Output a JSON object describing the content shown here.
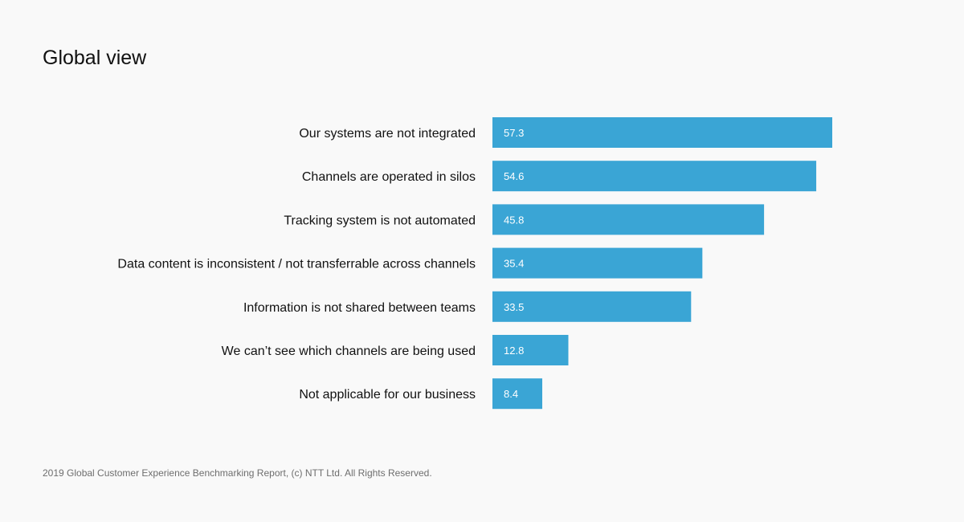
{
  "page": {
    "title": "Global view",
    "footer": "2019 Global Customer Experience Benchmarking Report, (c) NTT Ltd. All Rights Reserved."
  },
  "colors": {
    "bar": "#3aa5d5",
    "bar_label": "#ffffff",
    "category_label": "#111111",
    "background": "#f9f9f9",
    "footer_text": "#6e6e6e"
  },
  "chart_data": {
    "type": "bar",
    "orientation": "horizontal",
    "title": "Global view",
    "categories": [
      "Our systems are not integrated",
      "Channels are operated in silos",
      "Tracking system is not automated",
      "Data content is inconsistent / not transferrable across channels",
      "Information is not shared between teams",
      "We can’t see which channels are being used",
      "Not applicable for our business"
    ],
    "values": [
      57.3,
      54.6,
      45.8,
      35.4,
      33.5,
      12.8,
      8.4
    ],
    "value_labels": [
      "57.3",
      "54.6",
      "45.8",
      "35.4",
      "33.5",
      "12.8",
      "8.4"
    ],
    "xlim": [
      0,
      60
    ],
    "grid": false,
    "legend": "none"
  }
}
